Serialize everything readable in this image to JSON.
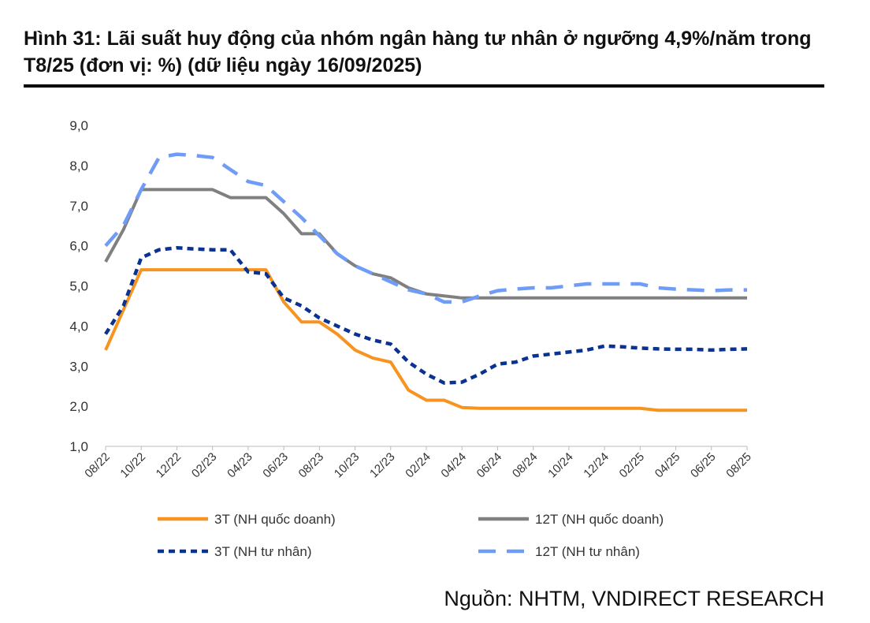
{
  "title": "Hình 31: Lãi suất huy động của nhóm ngân hàng tư nhân ở ngưỡng 4,9%/năm trong T8/25  (đơn vị: %) (dữ liệu ngày 16/09/2025)",
  "source": "Nguồn: NHTM, VNDIRECT RESEARCH",
  "chart_data": {
    "type": "line",
    "x": [
      "08/22",
      "09/22",
      "10/22",
      "11/22",
      "12/22",
      "01/23",
      "02/23",
      "03/23",
      "04/23",
      "05/23",
      "06/23",
      "07/23",
      "08/23",
      "09/23",
      "10/23",
      "11/23",
      "12/23",
      "01/24",
      "02/24",
      "03/24",
      "04/24",
      "05/24",
      "06/24",
      "07/24",
      "08/24",
      "09/24",
      "10/24",
      "11/24",
      "12/24",
      "01/25",
      "02/25",
      "03/25",
      "04/25",
      "05/25",
      "06/25",
      "07/25",
      "08/25"
    ],
    "xticks": [
      "08/22",
      "10/22",
      "12/22",
      "02/23",
      "04/23",
      "06/23",
      "08/23",
      "10/23",
      "12/23",
      "02/24",
      "04/24",
      "06/24",
      "08/24",
      "10/24",
      "12/24",
      "02/25",
      "04/25",
      "06/25",
      "08/25"
    ],
    "ylim": [
      1.0,
      9.0
    ],
    "yticks": [
      "1,0",
      "2,0",
      "3,0",
      "4,0",
      "5,0",
      "6,0",
      "7,0",
      "8,0",
      "9,0"
    ],
    "grid": false,
    "legend_placement": "bottom",
    "series": [
      {
        "name": "3T (NH quốc doanh)",
        "color": "#F7931E",
        "style": "solid",
        "values": [
          3.4,
          4.4,
          5.4,
          5.4,
          5.4,
          5.4,
          5.4,
          5.4,
          5.4,
          5.4,
          4.6,
          4.1,
          4.1,
          3.8,
          3.4,
          3.2,
          3.1,
          2.4,
          2.15,
          2.15,
          1.97,
          1.95,
          1.95,
          1.95,
          1.95,
          1.95,
          1.95,
          1.95,
          1.95,
          1.95,
          1.95,
          1.9,
          1.9,
          1.9,
          1.9,
          1.9,
          1.9
        ]
      },
      {
        "name": "12T (NH quốc doanh)",
        "color": "#808080",
        "style": "solid",
        "values": [
          5.6,
          6.4,
          7.4,
          7.4,
          7.4,
          7.4,
          7.4,
          7.2,
          7.2,
          7.2,
          6.8,
          6.3,
          6.3,
          5.8,
          5.5,
          5.3,
          5.2,
          4.95,
          4.8,
          4.75,
          4.7,
          4.7,
          4.7,
          4.7,
          4.7,
          4.7,
          4.7,
          4.7,
          4.7,
          4.7,
          4.7,
          4.7,
          4.7,
          4.7,
          4.7,
          4.7,
          4.7
        ]
      },
      {
        "name": "3T (NH tư nhân)",
        "color": "#0A3291",
        "style": "dotted",
        "values": [
          3.8,
          4.5,
          5.7,
          5.9,
          5.95,
          5.92,
          5.9,
          5.9,
          5.35,
          5.3,
          4.7,
          4.5,
          4.2,
          4.0,
          3.8,
          3.65,
          3.55,
          3.1,
          2.8,
          2.58,
          2.6,
          2.8,
          3.05,
          3.1,
          3.25,
          3.3,
          3.35,
          3.4,
          3.5,
          3.48,
          3.45,
          3.43,
          3.42,
          3.42,
          3.4,
          3.42,
          3.43
        ]
      },
      {
        "name": "12T (NH tư nhân)",
        "color": "#6F9CF7",
        "style": "dashed",
        "values": [
          6.0,
          6.5,
          7.4,
          8.2,
          8.28,
          8.25,
          8.2,
          7.9,
          7.6,
          7.5,
          7.1,
          6.7,
          6.25,
          5.8,
          5.5,
          5.3,
          5.1,
          4.9,
          4.8,
          4.6,
          4.6,
          4.75,
          4.88,
          4.92,
          4.95,
          4.95,
          5.0,
          5.05,
          5.05,
          5.05,
          5.05,
          4.95,
          4.92,
          4.9,
          4.88,
          4.9,
          4.9
        ]
      }
    ]
  }
}
